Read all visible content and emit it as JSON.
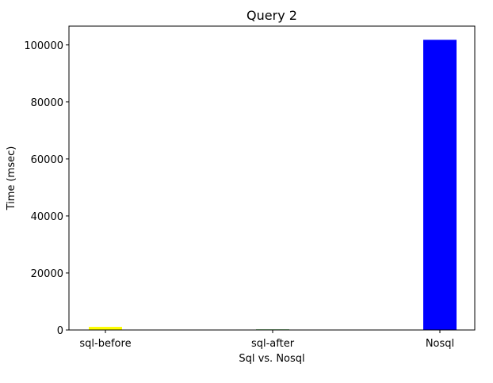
{
  "chart_data": {
    "type": "bar",
    "title": "Query 2",
    "xlabel": "Sql vs. Nosql",
    "ylabel": "Time (msec)",
    "categories": [
      "sql-before",
      "sql-after",
      "Nosql"
    ],
    "values": [
      1100,
      200,
      101800
    ],
    "colors": [
      "#ffff00",
      "#008000",
      "#0000ff"
    ],
    "ylim": [
      0,
      106600
    ],
    "yticks": [
      0,
      20000,
      40000,
      60000,
      80000,
      100000
    ],
    "ytick_labels": [
      "0",
      "20000",
      "40000",
      "60000",
      "80000",
      "100000"
    ],
    "grid": false,
    "legend": "none"
  }
}
